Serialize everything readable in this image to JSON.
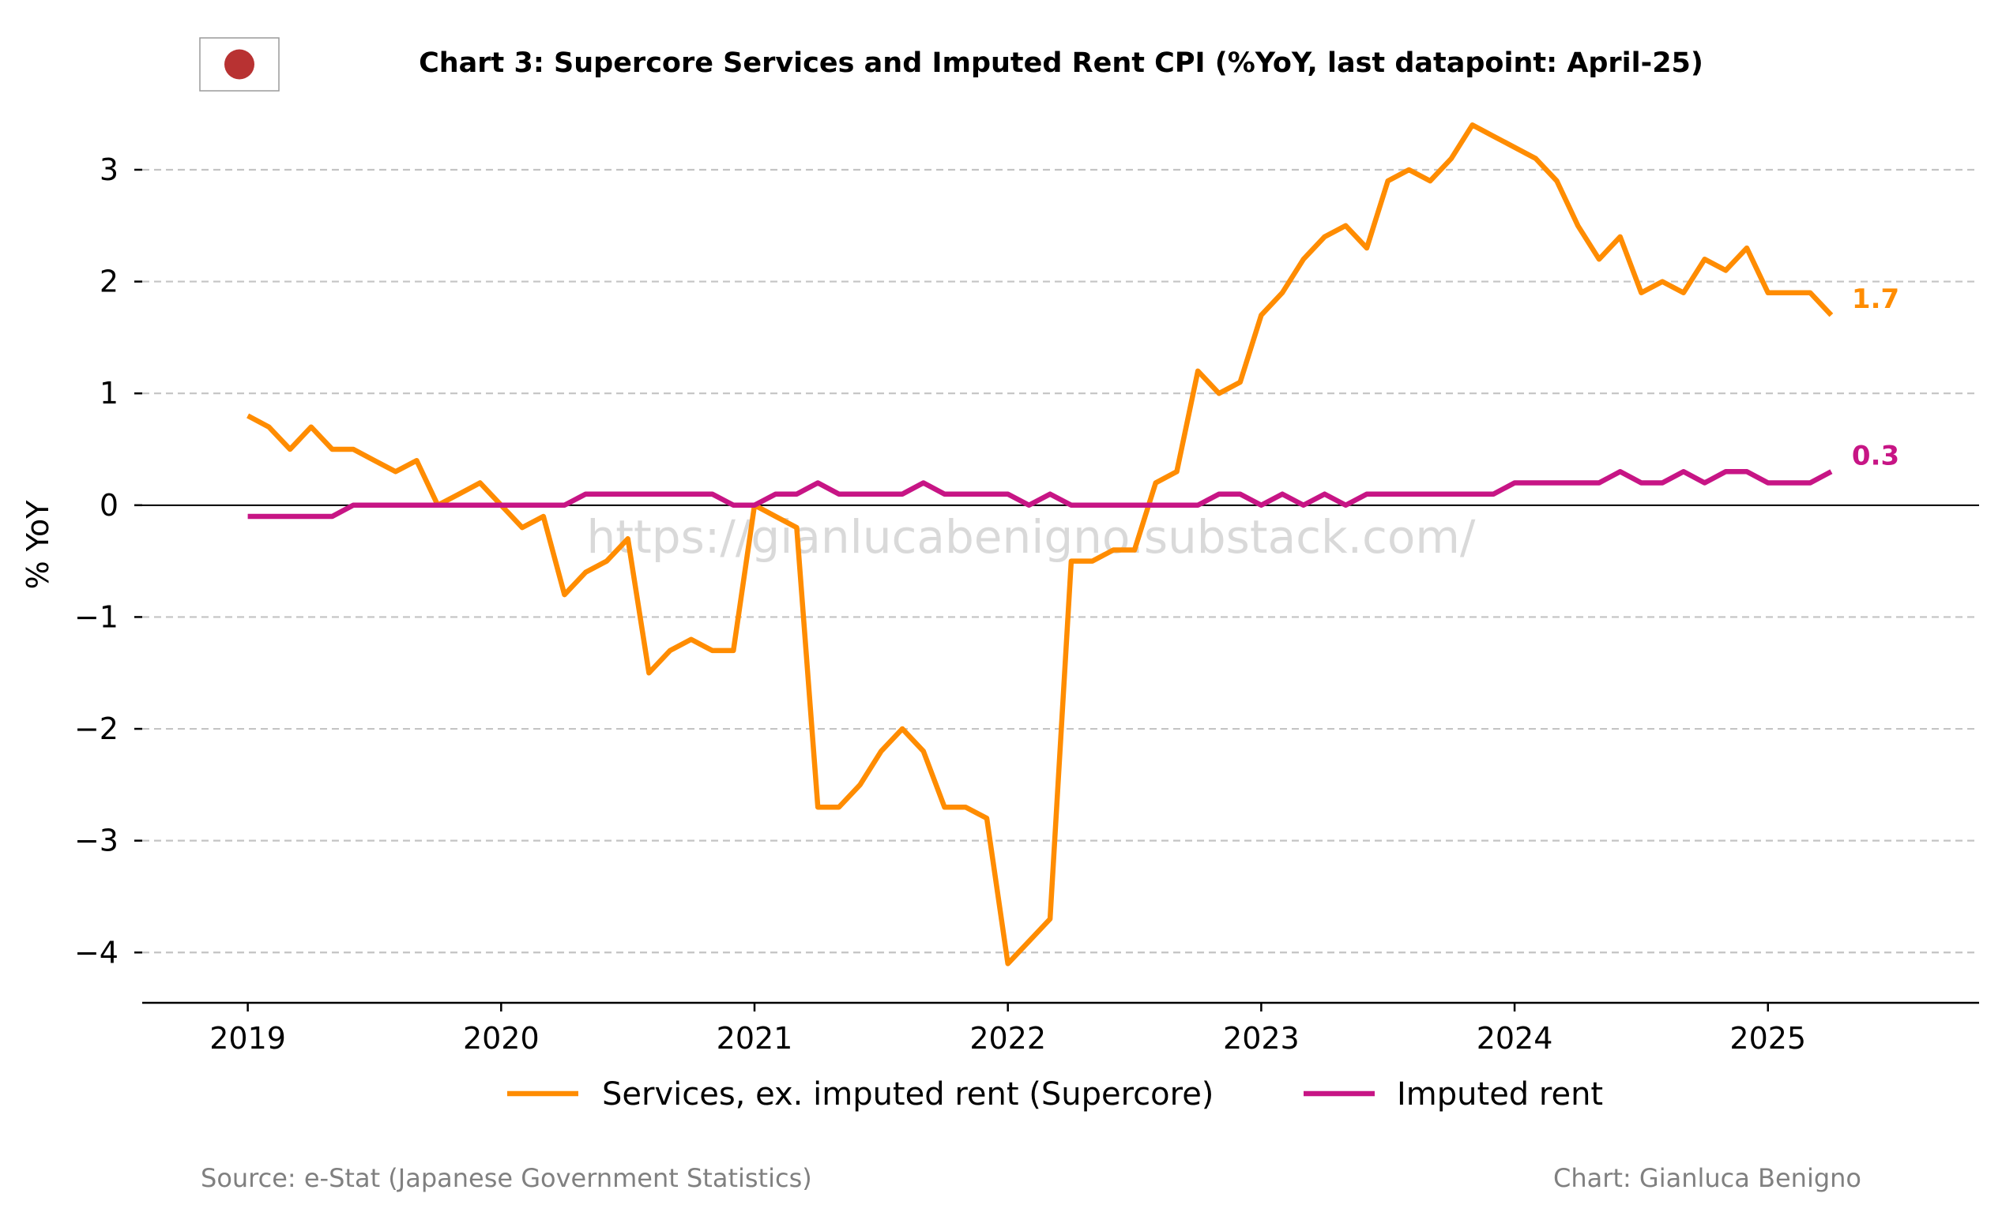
{
  "colors": {
    "supercore": "#ff8c00",
    "imputed_rent": "#c71585",
    "grid": "#c4c4c4",
    "axis": "#000000",
    "footer": "#808080",
    "watermark": "#c9c9c9",
    "flag_dot": "#b83232"
  },
  "header": {
    "flag_icon": "japan-flag-icon"
  },
  "watermark": "https://gianlucabenigno.substack.com/",
  "footer": {
    "source": "Source: e-Stat (Japanese Government Statistics)",
    "credit": "Chart: Gianluca Benigno"
  },
  "chart_data": {
    "type": "line",
    "title": "Chart 3: Supercore Services and Imputed Rent CPI (%YoY, last datapoint: April-25)",
    "xlabel": "",
    "ylabel": "% YoY",
    "x_start": "2019-01",
    "x_end": "2025-04",
    "x_ticks": [
      "2019",
      "2020",
      "2021",
      "2022",
      "2023",
      "2024",
      "2025"
    ],
    "xlim": [
      "2018-08",
      "2025-11"
    ],
    "y_ticks": [
      "3",
      "2",
      "1",
      "0",
      "−1",
      "−2",
      "−3",
      "−4"
    ],
    "ylim": [
      -4.45,
      3.6
    ],
    "grid": "horizontal dashed",
    "zero_line": true,
    "legend_position": "bottom-center",
    "series": [
      {
        "name": "Services, ex. imputed rent (Supercore)",
        "key": "supercore",
        "end_label": "1.7",
        "x": [
          "2019-01",
          "2019-02",
          "2019-03",
          "2019-04",
          "2019-05",
          "2019-06",
          "2019-07",
          "2019-08",
          "2019-09",
          "2019-10",
          "2019-11",
          "2019-12",
          "2020-01",
          "2020-02",
          "2020-03",
          "2020-04",
          "2020-05",
          "2020-06",
          "2020-07",
          "2020-08",
          "2020-09",
          "2020-10",
          "2020-11",
          "2020-12",
          "2021-01",
          "2021-02",
          "2021-03",
          "2021-04",
          "2021-05",
          "2021-06",
          "2021-07",
          "2021-08",
          "2021-09",
          "2021-10",
          "2021-11",
          "2021-12",
          "2022-01",
          "2022-02",
          "2022-03",
          "2022-04",
          "2022-05",
          "2022-06",
          "2022-07",
          "2022-08",
          "2022-09",
          "2022-10",
          "2022-11",
          "2022-12",
          "2023-01",
          "2023-02",
          "2023-03",
          "2023-04",
          "2023-05",
          "2023-06",
          "2023-07",
          "2023-08",
          "2023-09",
          "2023-10",
          "2023-11",
          "2023-12",
          "2024-01",
          "2024-02",
          "2024-03",
          "2024-04",
          "2024-05",
          "2024-06",
          "2024-07",
          "2024-08",
          "2024-09",
          "2024-10",
          "2024-11",
          "2024-12",
          "2025-01",
          "2025-02",
          "2025-03",
          "2025-04"
        ],
        "values": [
          0.8,
          0.7,
          0.5,
          0.7,
          0.5,
          0.5,
          0.4,
          0.3,
          0.4,
          0.0,
          0.1,
          0.2,
          0.0,
          -0.2,
          -0.1,
          -0.8,
          -0.6,
          -0.5,
          -0.3,
          -1.5,
          -1.3,
          -1.2,
          -1.3,
          -1.3,
          0.0,
          -0.1,
          -0.2,
          -2.7,
          -2.7,
          -2.5,
          -2.2,
          -2.0,
          -2.2,
          -2.7,
          -2.7,
          -2.8,
          -4.1,
          -3.9,
          -3.7,
          -0.5,
          -0.5,
          -0.4,
          -0.4,
          0.2,
          0.3,
          1.2,
          1.0,
          1.1,
          1.7,
          1.9,
          2.2,
          2.4,
          2.5,
          2.3,
          2.9,
          3.0,
          2.9,
          3.1,
          3.4,
          3.3,
          3.2,
          3.1,
          2.9,
          2.5,
          2.2,
          2.4,
          1.9,
          2.0,
          1.9,
          2.2,
          2.1,
          2.3,
          1.9,
          1.9,
          1.9,
          1.7
        ]
      },
      {
        "name": "Imputed rent",
        "key": "imputed_rent",
        "end_label": "0.3",
        "x": [
          "2019-01",
          "2019-02",
          "2019-03",
          "2019-04",
          "2019-05",
          "2019-06",
          "2019-07",
          "2019-08",
          "2019-09",
          "2019-10",
          "2019-11",
          "2019-12",
          "2020-01",
          "2020-02",
          "2020-03",
          "2020-04",
          "2020-05",
          "2020-06",
          "2020-07",
          "2020-08",
          "2020-09",
          "2020-10",
          "2020-11",
          "2020-12",
          "2021-01",
          "2021-02",
          "2021-03",
          "2021-04",
          "2021-05",
          "2021-06",
          "2021-07",
          "2021-08",
          "2021-09",
          "2021-10",
          "2021-11",
          "2021-12",
          "2022-01",
          "2022-02",
          "2022-03",
          "2022-04",
          "2022-05",
          "2022-06",
          "2022-07",
          "2022-08",
          "2022-09",
          "2022-10",
          "2022-11",
          "2022-12",
          "2023-01",
          "2023-02",
          "2023-03",
          "2023-04",
          "2023-05",
          "2023-06",
          "2023-07",
          "2023-08",
          "2023-09",
          "2023-10",
          "2023-11",
          "2023-12",
          "2024-01",
          "2024-02",
          "2024-03",
          "2024-04",
          "2024-05",
          "2024-06",
          "2024-07",
          "2024-08",
          "2024-09",
          "2024-10",
          "2024-11",
          "2024-12",
          "2025-01",
          "2025-02",
          "2025-03",
          "2025-04"
        ],
        "values": [
          -0.1,
          -0.1,
          -0.1,
          -0.1,
          -0.1,
          0.0,
          0.0,
          0.0,
          0.0,
          0.0,
          0.0,
          0.0,
          0.0,
          0.0,
          0.0,
          0.0,
          0.1,
          0.1,
          0.1,
          0.1,
          0.1,
          0.1,
          0.1,
          0.0,
          0.0,
          0.1,
          0.1,
          0.2,
          0.1,
          0.1,
          0.1,
          0.1,
          0.2,
          0.1,
          0.1,
          0.1,
          0.1,
          0.0,
          0.1,
          0.0,
          0.0,
          0.0,
          0.0,
          0.0,
          0.0,
          0.0,
          0.1,
          0.1,
          0.0,
          0.1,
          0.0,
          0.1,
          0.0,
          0.1,
          0.1,
          0.1,
          0.1,
          0.1,
          0.1,
          0.1,
          0.2,
          0.2,
          0.2,
          0.2,
          0.2,
          0.3,
          0.2,
          0.2,
          0.3,
          0.2,
          0.3,
          0.3,
          0.2,
          0.2,
          0.2,
          0.3
        ]
      }
    ]
  }
}
